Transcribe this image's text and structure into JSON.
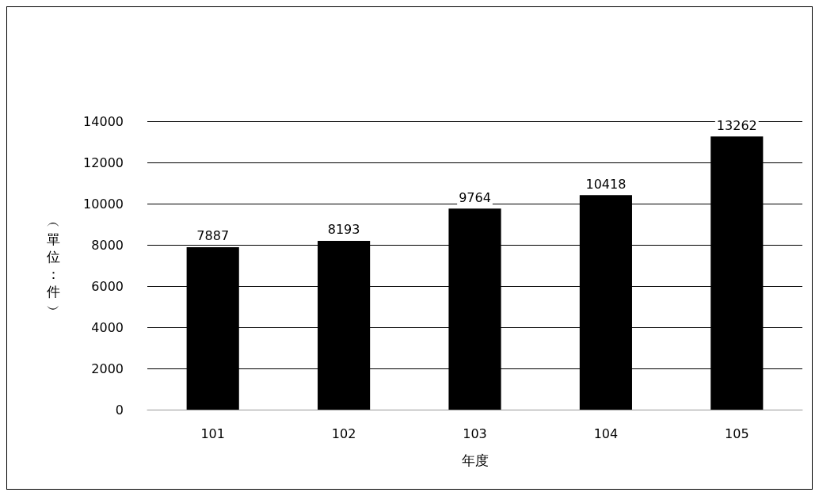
{
  "chart_data": {
    "type": "bar",
    "xlabel": "年度",
    "ylabel": "︵單位：件︶",
    "categories": [
      "101",
      "102",
      "103",
      "104",
      "105"
    ],
    "values": [
      7887,
      8193,
      9764,
      10418,
      13262
    ],
    "color": "#000000",
    "ylim": [
      0,
      14000
    ],
    "yticks": [
      0,
      2000,
      4000,
      6000,
      8000,
      10000,
      12000,
      14000
    ],
    "grid": "y",
    "data_labels": true
  }
}
